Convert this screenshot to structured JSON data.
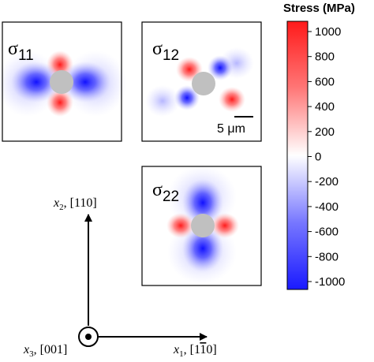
{
  "colorbar": {
    "title": "Stress (MPa)",
    "ticks": [
      "1000",
      "800",
      "600",
      "400",
      "200",
      "0",
      "-200",
      "-400",
      "-600",
      "-800",
      "-1000"
    ],
    "range": [
      -1000,
      1000
    ],
    "colors": {
      "positive": "#ff1a1a",
      "zero": "#ffffff",
      "negative": "#1a1aff"
    }
  },
  "panels": [
    {
      "id": "s11",
      "label_base": "σ",
      "label_sub": "11",
      "pattern": "sigma11"
    },
    {
      "id": "s12",
      "label_base": "σ",
      "label_sub": "12",
      "pattern": "sigma12",
      "scale_bar": "5 μm"
    },
    {
      "id": "s22",
      "label_base": "σ",
      "label_sub": "22",
      "pattern": "sigma22"
    }
  ],
  "axes": {
    "x2": {
      "var": "x",
      "sub": "2",
      "dir": ", [110]"
    },
    "x1": {
      "var": "x",
      "sub": "1",
      "dir_pre": ", [1",
      "dir_bar": "1",
      "dir_post": "0]"
    },
    "x3": {
      "var": "x",
      "sub": "3",
      "dir": ", [001]"
    }
  },
  "colors": {
    "hole": "#c0c0c0",
    "frame": "#000000"
  }
}
